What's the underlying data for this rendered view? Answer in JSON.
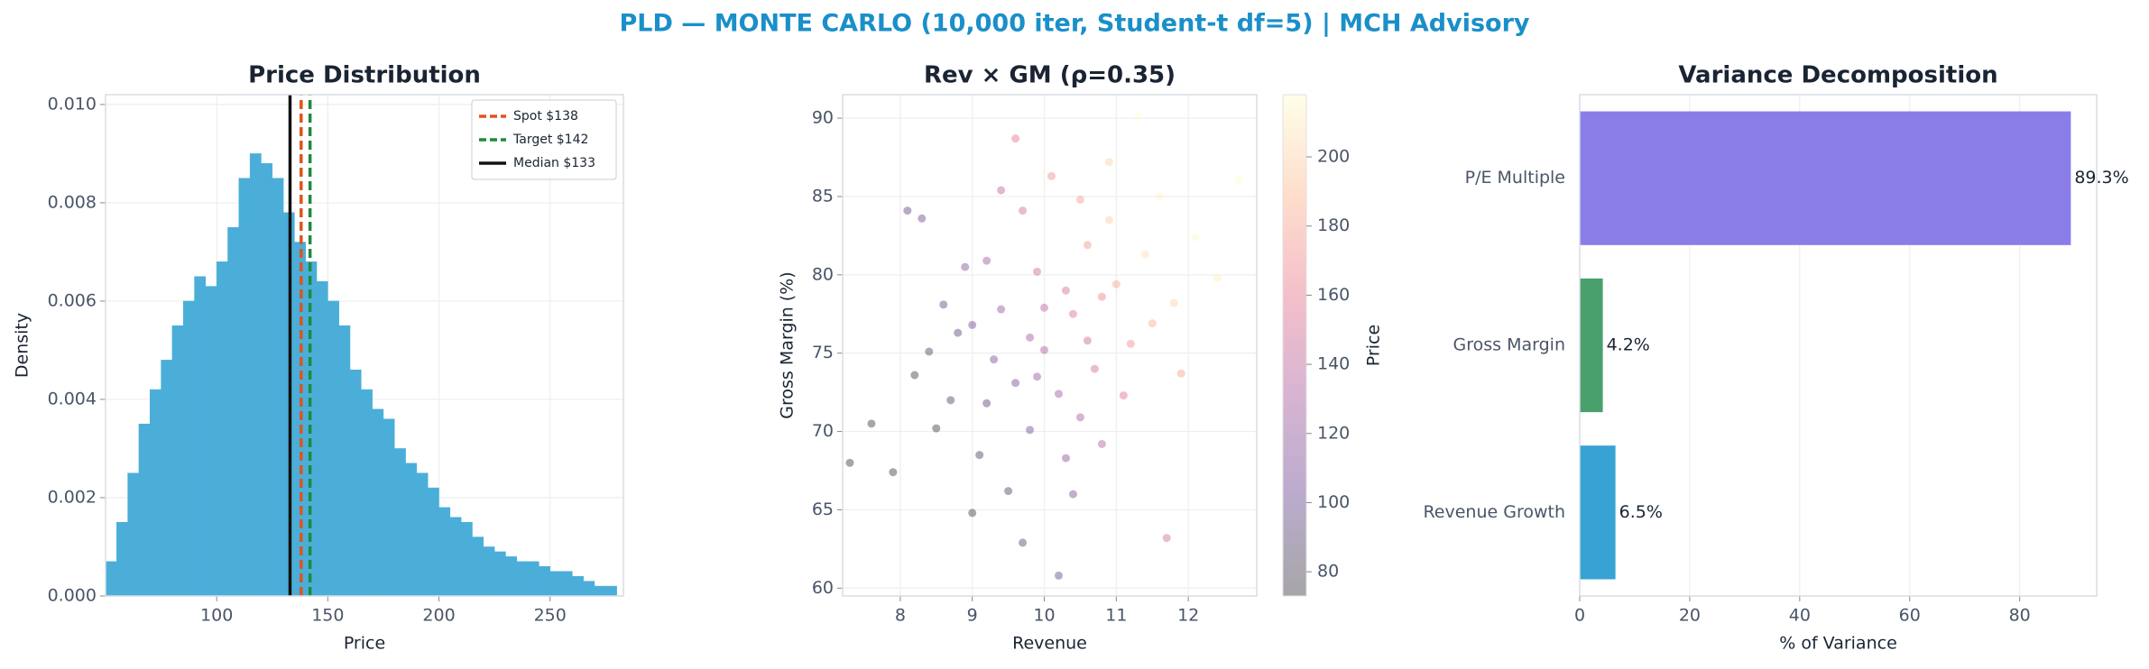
{
  "title": "PLD — MONTE CARLO (10,000 iter, Student-t df=5) | MCH Advisory",
  "chart_data": [
    {
      "type": "histogram",
      "title": "Price Distribution",
      "xlabel": "Price",
      "ylabel": "Density",
      "bins": [
        50,
        55,
        60,
        65,
        70,
        75,
        80,
        85,
        90,
        95,
        100,
        105,
        110,
        115,
        120,
        125,
        130,
        135,
        140,
        145,
        150,
        155,
        160,
        165,
        170,
        175,
        180,
        185,
        190,
        195,
        200,
        205,
        210,
        215,
        220,
        225,
        230,
        235,
        240,
        245,
        250,
        255,
        260,
        265,
        270,
        275,
        280
      ],
      "counts": [
        0.0007,
        0.0015,
        0.0025,
        0.0035,
        0.0042,
        0.0048,
        0.0055,
        0.006,
        0.0065,
        0.0063,
        0.0068,
        0.0075,
        0.0085,
        0.009,
        0.0088,
        0.0085,
        0.0078,
        0.0072,
        0.0068,
        0.0064,
        0.006,
        0.0055,
        0.0046,
        0.0042,
        0.0038,
        0.0036,
        0.003,
        0.0027,
        0.0025,
        0.0022,
        0.0018,
        0.0016,
        0.0015,
        0.0012,
        0.001,
        0.0009,
        0.0008,
        0.0007,
        0.0007,
        0.0006,
        0.0005,
        0.0005,
        0.0004,
        0.0003,
        0.0002,
        0.0002
      ],
      "color": "#4aaed9",
      "vlines": [
        {
          "name": "Spot $138",
          "value": 138,
          "color": "#e0541a",
          "dashed": true
        },
        {
          "name": "Target $142",
          "value": 142,
          "color": "#1e8a3c",
          "dashed": true
        },
        {
          "name": "Median $133",
          "value": 133,
          "color": "#111111",
          "dashed": false
        }
      ],
      "legend": "upper right",
      "xlim": [
        50,
        283
      ],
      "xticks": [
        100,
        150,
        200,
        250
      ],
      "ylim": [
        0,
        0.0102
      ],
      "yticks": [
        {
          "value": 0,
          "label": "0.000"
        },
        0.002,
        0.004,
        0.006,
        0.008,
        {
          "value": 0.01,
          "label": "0.010"
        }
      ],
      "grid": true
    },
    {
      "type": "scatter",
      "title": "Rev × GM (ρ=0.35)",
      "xlabel": "Revenue",
      "ylabel": "Gross Margin (%)",
      "x": [
        10.0,
        9.6,
        10.4,
        9.2,
        11.0,
        8.8,
        10.7,
        9.9,
        10.2,
        11.4,
        8.5,
        9.4,
        10.9,
        9.1,
        10.5,
        11.8,
        8.2,
        9.7,
        10.3,
        9.5,
        11.2,
        8.9,
        10.1,
        9.8,
        12.1,
        7.9,
        10.6,
        9.3,
        10.8,
        11.6,
        9.0,
        10.0,
        8.6,
        11.1,
        9.6,
        10.4,
        12.4,
        8.3,
        9.9,
        10.9,
        7.6,
        11.5,
        9.2,
        10.2,
        10.6,
        8.7,
        11.9,
        9.4,
        10.3,
        11.3,
        7.3,
        12.7,
        9.7,
        10.8,
        8.1,
        11.7,
        9.0,
        10.5,
        9.8,
        8.4
      ],
      "y": [
        75.2,
        73.1,
        77.5,
        71.8,
        79.4,
        76.3,
        74.0,
        80.2,
        72.4,
        81.3,
        70.2,
        77.8,
        83.5,
        68.5,
        70.9,
        78.2,
        73.6,
        84.1,
        79.0,
        66.2,
        75.6,
        80.5,
        86.3,
        70.1,
        82.4,
        67.4,
        81.9,
        74.6,
        69.2,
        85.0,
        64.8,
        77.9,
        78.1,
        72.3,
        88.7,
        66.0,
        79.8,
        83.6,
        73.5,
        87.2,
        70.5,
        76.9,
        80.9,
        60.8,
        75.8,
        72.0,
        73.7,
        85.4,
        68.3,
        90.1,
        68.0,
        86.1,
        62.9,
        78.6,
        84.1,
        63.2,
        76.8,
        84.8,
        76.0,
        75.1
      ],
      "color_values": [
        131,
        108,
        155,
        92,
        182,
        95,
        150,
        147,
        125,
        205,
        75,
        122,
        198,
        83,
        131,
        200,
        78,
        150,
        152,
        86,
        170,
        115,
        170,
        106,
        216,
        74,
        175,
        110,
        136,
        214,
        78,
        140,
        96,
        155,
        160,
        112,
        212,
        104,
        122,
        200,
        73,
        186,
        126,
        100,
        146,
        87,
        180,
        140,
        118,
        218,
        73,
        218,
        92,
        166,
        98,
        150,
        107,
        178,
        128,
        86
      ],
      "colormap": [
        "#000004",
        "#3b0f70",
        "#8c2981",
        "#de4968",
        "#fe9f6d",
        "#fcfdbf"
      ],
      "opacity": 0.35,
      "clim": [
        73,
        218
      ],
      "colorbar_label": "Price",
      "cbar_ticks": [
        80,
        100,
        120,
        140,
        160,
        180,
        200
      ],
      "xlim": [
        7.2,
        12.95
      ],
      "xticks": [
        8,
        9,
        10,
        11,
        12
      ],
      "ylim": [
        59.5,
        91.5
      ],
      "yticks": [
        60,
        65,
        70,
        75,
        80,
        85,
        90
      ],
      "grid": true
    },
    {
      "type": "bar",
      "orientation": "horizontal",
      "title": "Variance Decomposition",
      "xlabel": "% of Variance",
      "categories": [
        "P/E Multiple",
        "Gross Margin",
        "Revenue Growth"
      ],
      "values": [
        89.3,
        4.2,
        6.5
      ],
      "value_labels": [
        "89.3%",
        "4.2%",
        "6.5%"
      ],
      "colors": [
        "#8a7de8",
        "#4aa06c",
        "#36a3d4"
      ],
      "xlim": [
        0,
        94
      ],
      "xticks": [
        0,
        20,
        40,
        60,
        80
      ],
      "grid": true
    }
  ]
}
